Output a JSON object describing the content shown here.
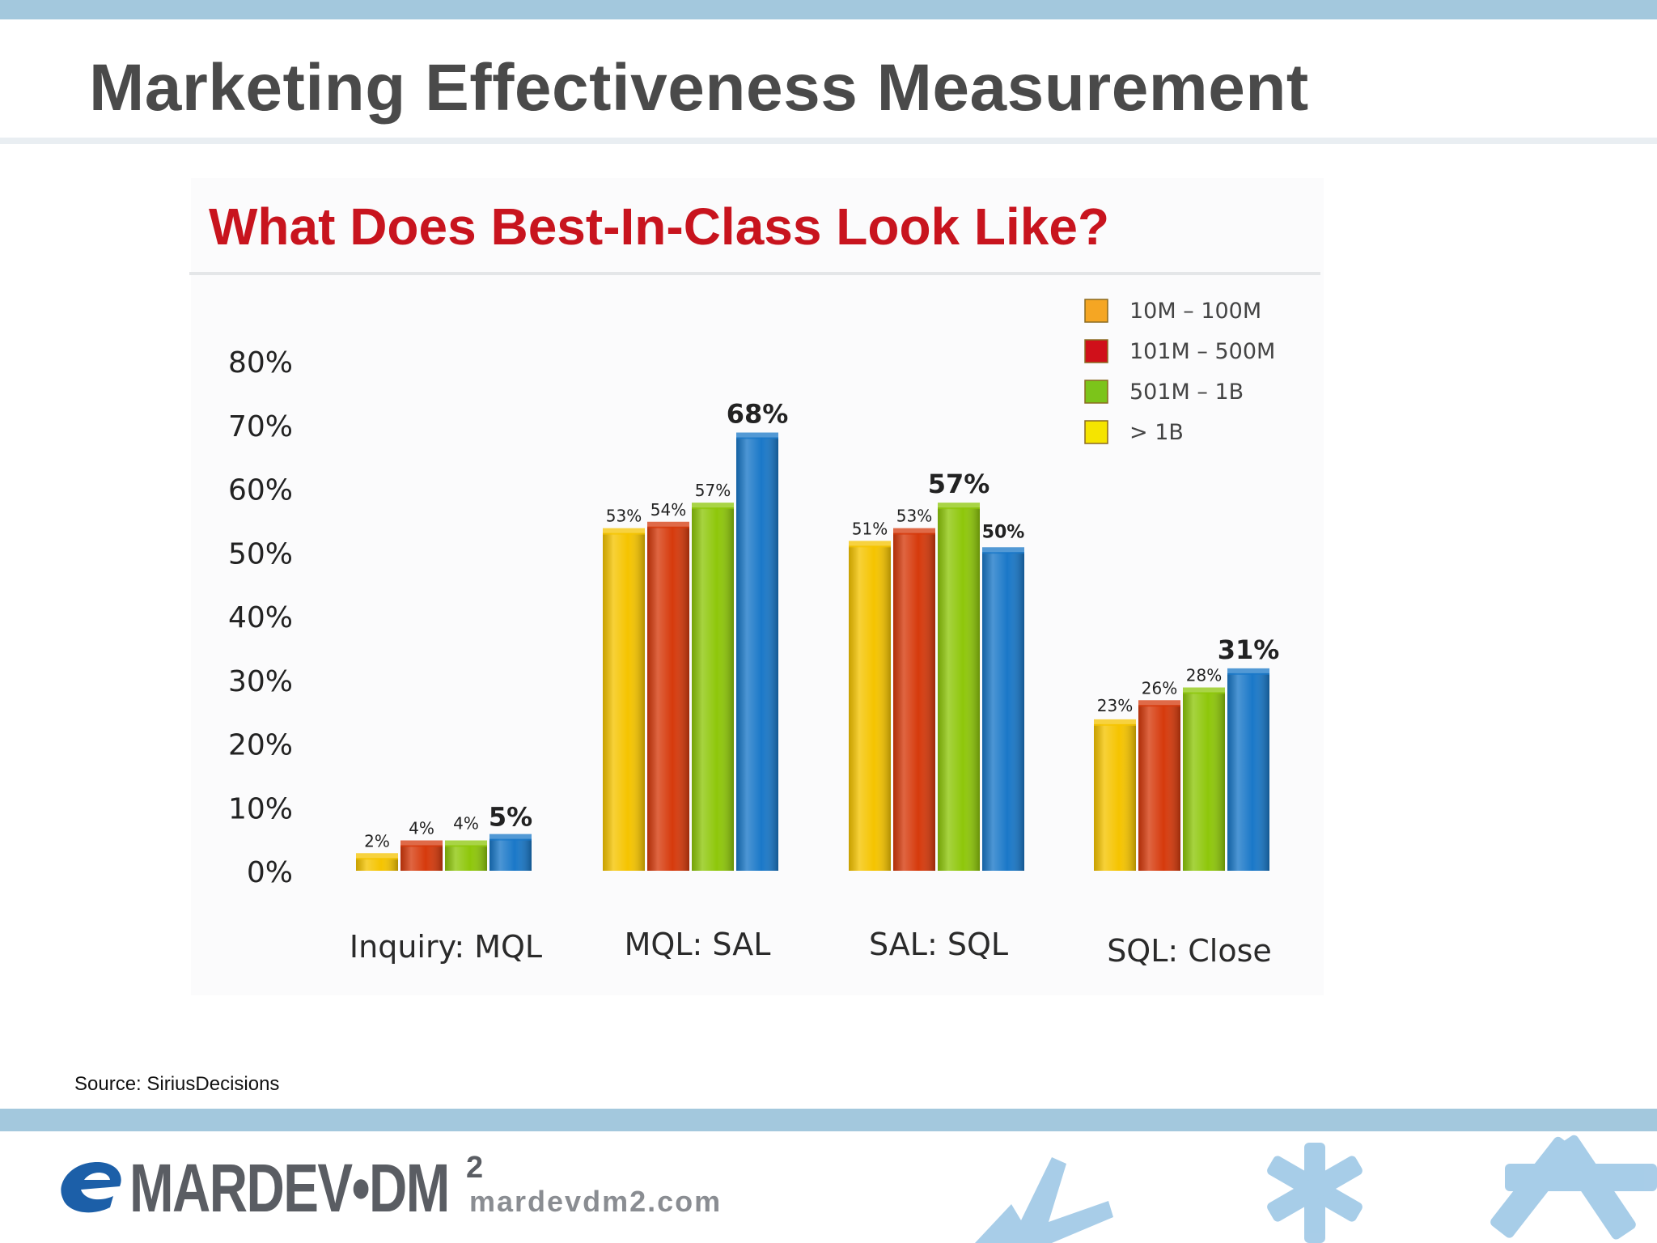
{
  "slide": {
    "title": "Marketing Effectiveness Measurement",
    "source": "Source: SiriusDecisions"
  },
  "footer": {
    "logo_text": "MARDEV•DM",
    "logo_sup": "2",
    "website": "mardevdm2.com"
  },
  "colors": {
    "band": "#a3c8dd",
    "title_text": "#4a4a4a",
    "chart_title": "#c8141e"
  },
  "chart_data": {
    "type": "bar",
    "title": "What Does Best-In-Class Look Like?",
    "categories": [
      "Inquiry: MQL",
      "MQL: SAL",
      "SAL: SQL",
      "SQL: Close"
    ],
    "series": [
      {
        "name": "10M – 100M",
        "color": "#f5c400",
        "values": [
          2,
          53,
          51,
          23
        ],
        "labels": [
          "2%",
          "53%",
          "51%",
          "23%"
        ]
      },
      {
        "name": "101M – 500M",
        "color": "#d63a0c",
        "values": [
          4,
          54,
          53,
          26
        ],
        "labels": [
          "4%",
          "54%",
          "53%",
          "26%"
        ]
      },
      {
        "name": "501M – 1B",
        "color": "#8ec70a",
        "values": [
          4,
          57,
          57,
          28
        ],
        "labels": [
          "4%",
          "57%",
          "57%",
          "28%"
        ]
      },
      {
        "name": "> 1B",
        "color": "#1a78c8",
        "values": [
          5,
          68,
          50,
          31
        ],
        "labels": [
          "5%",
          "68%",
          "50%",
          "31%"
        ]
      }
    ],
    "emphasized_labels": [
      [
        0,
        3
      ],
      [
        1,
        3
      ],
      [
        2,
        2
      ],
      [
        2,
        3
      ],
      [
        3,
        3
      ]
    ],
    "ylim": [
      0,
      80
    ],
    "yticks": [
      "0%",
      "10%",
      "20%",
      "30%",
      "40%",
      "50%",
      "60%",
      "70%",
      "80%"
    ],
    "legend_position": "top-right",
    "legend_swatch_colors": [
      "#f5a623",
      "#d0101a",
      "#7cc41a",
      "#f5e400"
    ],
    "grid": false
  }
}
